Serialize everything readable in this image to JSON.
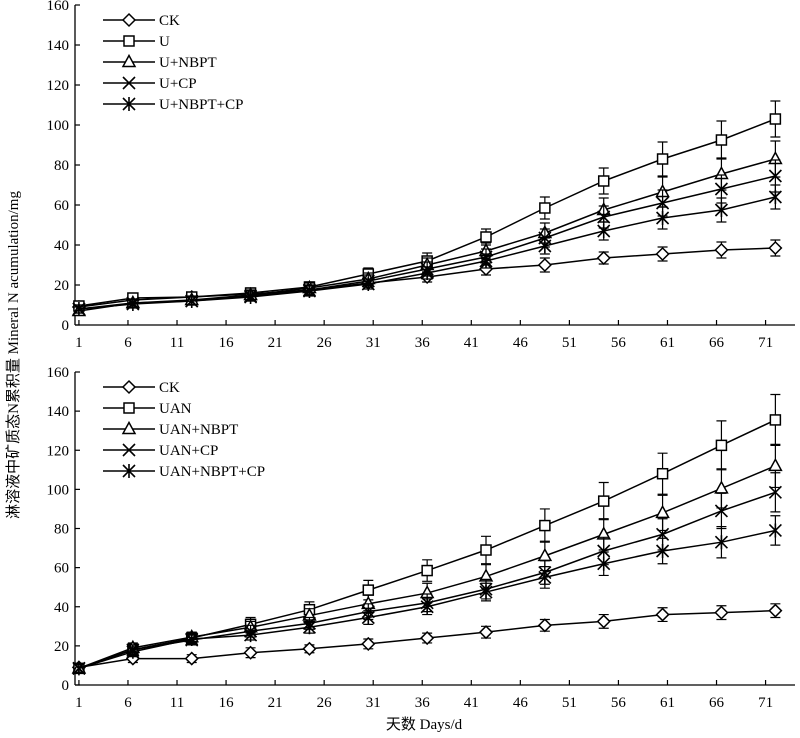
{
  "xlabel": "天数 Days/d",
  "ylabel": "淋溶液中矿质态N累积量 Mineral N acumulation/mg",
  "chart_data": [
    {
      "type": "line",
      "panel": "top",
      "x": [
        1,
        6.5,
        12.5,
        18.5,
        24.5,
        30.5,
        36.5,
        42.5,
        48.5,
        54.5,
        60.5,
        66.5,
        72
      ],
      "xticks": [
        1,
        6,
        11,
        16,
        21,
        26,
        31,
        36,
        41,
        46,
        51,
        56,
        61,
        66,
        71
      ],
      "ylim": [
        0,
        160
      ],
      "yticks": [
        0,
        20,
        40,
        60,
        80,
        100,
        120,
        140,
        160
      ],
      "legend_position": "top-left",
      "series": [
        {
          "name": "CK",
          "marker": "diamond",
          "values": [
            9,
            12.5,
            14,
            15.5,
            17.5,
            21,
            24,
            28,
            30,
            33.5,
            35.5,
            37.5,
            38.5
          ],
          "errors": [
            2,
            1.5,
            1.5,
            2,
            2,
            2,
            2.5,
            3,
            3.5,
            3,
            3.5,
            4,
            4
          ]
        },
        {
          "name": "U",
          "marker": "square",
          "values": [
            9.5,
            13.5,
            14,
            16,
            19,
            25.5,
            32,
            44,
            58.5,
            72,
            83,
            92.5,
            103
          ],
          "errors": [
            2,
            2,
            2,
            2.5,
            2.5,
            3,
            4,
            4,
            5.5,
            6.5,
            8.5,
            9.5,
            9
          ]
        },
        {
          "name": "U+NBPT",
          "marker": "triangle",
          "values": [
            7,
            11,
            12.5,
            15,
            18.5,
            23,
            30,
            37,
            46,
            57.5,
            66.5,
            75.5,
            83
          ],
          "errors": [
            2,
            2,
            2,
            2.5,
            2.5,
            3,
            3.5,
            4,
            5,
            6,
            7.5,
            8,
            9
          ]
        },
        {
          "name": "U+CP",
          "marker": "x",
          "values": [
            8,
            11,
            12,
            14.5,
            17.5,
            22,
            28,
            34,
            43.5,
            54,
            61,
            68,
            74.5
          ],
          "errors": [
            2,
            2,
            2,
            2.5,
            2.5,
            3,
            3.5,
            4,
            4.5,
            5.5,
            6.5,
            7,
            8
          ]
        },
        {
          "name": "U+NBPT+CP",
          "marker": "asterisk",
          "values": [
            8,
            10.5,
            12,
            14,
            17,
            20.5,
            26,
            32,
            39.5,
            47,
            53.5,
            57.5,
            64
          ],
          "errors": [
            2,
            2,
            2,
            2,
            2.5,
            2.5,
            3,
            3.5,
            4,
            4.5,
            5.5,
            6,
            6
          ]
        }
      ]
    },
    {
      "type": "line",
      "panel": "bottom",
      "x": [
        1,
        6.5,
        12.5,
        18.5,
        24.5,
        30.5,
        36.5,
        42.5,
        48.5,
        54.5,
        60.5,
        66.5,
        72
      ],
      "xticks": [
        1,
        6,
        11,
        16,
        21,
        26,
        31,
        36,
        41,
        46,
        51,
        56,
        61,
        66,
        71
      ],
      "ylim": [
        0,
        160
      ],
      "yticks": [
        0,
        20,
        40,
        60,
        80,
        100,
        120,
        140,
        160
      ],
      "legend_position": "top-left",
      "series": [
        {
          "name": "CK",
          "marker": "diamond",
          "values": [
            9,
            13.5,
            13.5,
            16.5,
            18.5,
            21,
            24,
            27,
            30.5,
            32.5,
            36,
            37,
            38
          ],
          "errors": [
            2,
            2,
            2,
            2.5,
            2,
            2.5,
            2.5,
            3,
            3,
            3.5,
            3.5,
            3.5,
            3.5
          ]
        },
        {
          "name": "UAN",
          "marker": "square",
          "values": [
            8.5,
            18,
            24,
            31,
            38.5,
            48.5,
            58.5,
            69,
            81.5,
            94,
            108,
            122.5,
            135.5
          ],
          "errors": [
            2,
            3,
            3,
            3.5,
            4,
            5,
            5.5,
            7,
            8.5,
            9.5,
            10.5,
            12.5,
            13
          ]
        },
        {
          "name": "UAN+NBPT",
          "marker": "triangle",
          "values": [
            8.5,
            19,
            24.5,
            29.5,
            35.5,
            41.5,
            47,
            55.5,
            66,
            77,
            88,
            100.5,
            112
          ],
          "errors": [
            2,
            2.5,
            2.5,
            3,
            3.5,
            4.5,
            5,
            6,
            7.5,
            8,
            9,
            10,
            11
          ]
        },
        {
          "name": "UAN+CP",
          "marker": "x",
          "values": [
            8.5,
            18,
            23,
            27.5,
            31.5,
            37.5,
            42,
            49,
            57.5,
            68.5,
            77,
            89,
            98.5
          ],
          "errors": [
            2,
            2.5,
            2.5,
            3,
            3,
            4,
            4.5,
            5,
            6,
            7,
            8,
            9,
            10
          ]
        },
        {
          "name": "UAN+NBPT+CP",
          "marker": "asterisk",
          "values": [
            8.5,
            17,
            23.5,
            25.5,
            29.5,
            34.5,
            40,
            47.5,
            55,
            62,
            68.5,
            73,
            79
          ],
          "errors": [
            2,
            2.5,
            2.5,
            2.5,
            3,
            3.5,
            4,
            4.5,
            5.5,
            6,
            6.5,
            8,
            7.5
          ]
        }
      ]
    }
  ]
}
